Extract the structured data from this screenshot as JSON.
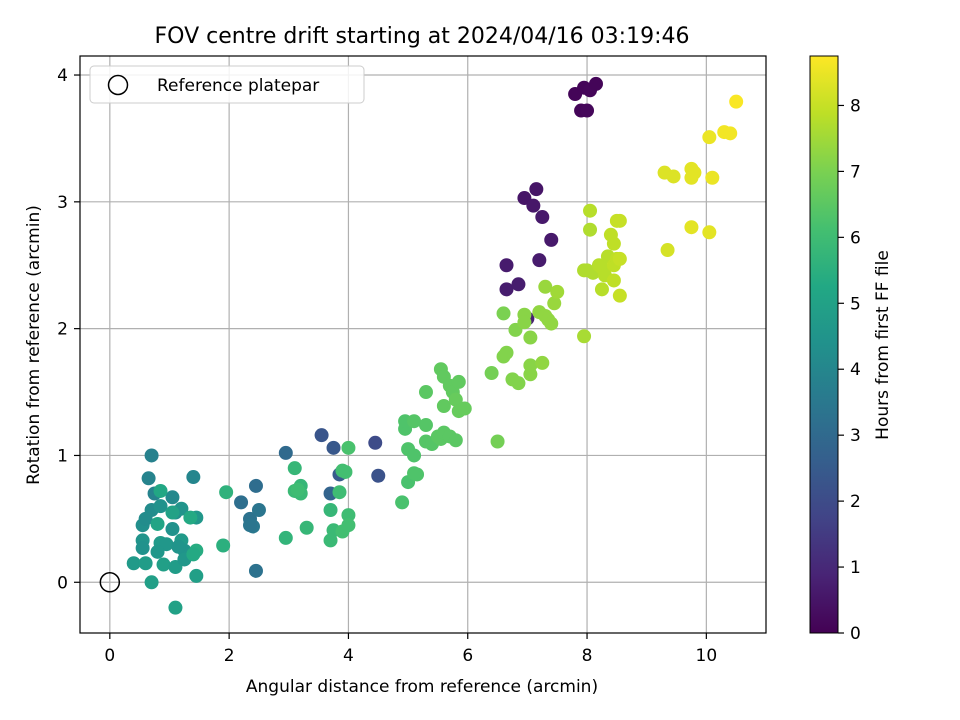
{
  "chart_data": {
    "type": "scatter",
    "title": "FOV centre drift starting at 2024/04/16 03:19:46",
    "xlabel": "Angular distance from reference (arcmin)",
    "ylabel": "Rotation from reference (arcmin)",
    "xlim": [
      -0.5,
      11.0
    ],
    "ylim": [
      -0.4,
      4.15
    ],
    "xticks": [
      0,
      2,
      4,
      6,
      8,
      10
    ],
    "yticks": [
      0,
      1,
      2,
      3,
      4
    ],
    "grid": true,
    "legend": {
      "placement": "top-left",
      "entries": [
        "Reference platepar"
      ]
    },
    "reference_point": {
      "x": 0,
      "y": 0,
      "label": "Reference platepar"
    },
    "colorbar": {
      "label": "Hours from first FF file",
      "range": [
        0,
        8.75
      ],
      "ticks": [
        0,
        1,
        2,
        3,
        4,
        5,
        6,
        7,
        8
      ],
      "colormap": "viridis"
    },
    "points": [
      [
        7.8,
        3.85,
        0.1
      ],
      [
        7.9,
        3.72,
        0.1
      ],
      [
        8.0,
        3.72,
        0.15
      ],
      [
        7.95,
        3.9,
        0.1
      ],
      [
        8.05,
        3.88,
        0.12
      ],
      [
        8.15,
        3.93,
        0.1
      ],
      [
        6.95,
        3.03,
        0.5
      ],
      [
        7.15,
        3.1,
        0.5
      ],
      [
        7.1,
        2.97,
        0.55
      ],
      [
        7.25,
        2.88,
        0.6
      ],
      [
        7.4,
        2.7,
        0.6
      ],
      [
        7.2,
        2.54,
        0.65
      ],
      [
        6.65,
        2.5,
        0.65
      ],
      [
        6.65,
        2.31,
        0.7
      ],
      [
        6.85,
        2.35,
        0.7
      ],
      [
        7.0,
        2.08,
        0.8
      ],
      [
        4.45,
        1.1,
        2.0
      ],
      [
        3.55,
        1.16,
        2.3
      ],
      [
        3.75,
        1.06,
        2.4
      ],
      [
        4.5,
        0.84,
        2.2
      ],
      [
        3.85,
        0.85,
        2.5
      ],
      [
        3.7,
        0.7,
        2.8
      ],
      [
        2.95,
        1.02,
        3.0
      ],
      [
        2.45,
        0.76,
        3.1
      ],
      [
        2.2,
        0.63,
        3.2
      ],
      [
        2.35,
        0.5,
        3.3
      ],
      [
        2.5,
        0.57,
        3.4
      ],
      [
        2.45,
        0.09,
        3.3
      ],
      [
        2.4,
        0.44,
        3.5
      ],
      [
        2.35,
        0.45,
        3.4
      ],
      [
        0.7,
        1.0,
        3.8
      ],
      [
        0.65,
        0.82,
        3.9
      ],
      [
        1.4,
        0.83,
        4.0
      ],
      [
        0.75,
        0.7,
        3.9
      ],
      [
        1.05,
        0.67,
        4.1
      ],
      [
        0.7,
        0.57,
        4.2
      ],
      [
        0.55,
        0.45,
        4.3
      ],
      [
        0.6,
        0.5,
        4.2
      ],
      [
        0.85,
        0.6,
        4.4
      ],
      [
        1.1,
        0.55,
        4.3
      ],
      [
        1.2,
        0.58,
        4.5
      ],
      [
        1.45,
        0.51,
        4.6
      ],
      [
        1.05,
        0.42,
        4.4
      ],
      [
        0.55,
        0.33,
        4.5
      ],
      [
        0.55,
        0.27,
        4.4
      ],
      [
        0.85,
        0.31,
        4.7
      ],
      [
        0.95,
        0.3,
        4.6
      ],
      [
        1.2,
        0.33,
        4.7
      ],
      [
        1.25,
        0.25,
        4.5
      ],
      [
        1.15,
        0.28,
        4.5
      ],
      [
        0.8,
        0.24,
        4.6
      ],
      [
        0.4,
        0.15,
        4.7
      ],
      [
        0.6,
        0.15,
        4.8
      ],
      [
        0.9,
        0.14,
        4.9
      ],
      [
        1.1,
        0.12,
        4.8
      ],
      [
        1.25,
        0.18,
        4.6
      ],
      [
        1.45,
        0.05,
        4.9
      ],
      [
        0.7,
        0.0,
        4.9
      ],
      [
        1.1,
        -0.2,
        5.0
      ],
      [
        0.85,
        0.72,
        5.2
      ],
      [
        0.8,
        0.46,
        5.1
      ],
      [
        1.35,
        0.51,
        5.3
      ],
      [
        1.45,
        0.25,
        5.4
      ],
      [
        1.4,
        0.22,
        5.3
      ],
      [
        1.05,
        0.55,
        5.0
      ],
      [
        1.95,
        0.71,
        5.6
      ],
      [
        1.9,
        0.29,
        5.5
      ],
      [
        2.95,
        0.35,
        5.7
      ],
      [
        3.1,
        0.9,
        5.8
      ],
      [
        3.1,
        0.72,
        5.9
      ],
      [
        3.2,
        0.76,
        5.8
      ],
      [
        3.2,
        0.7,
        5.9
      ],
      [
        3.3,
        0.43,
        5.8
      ],
      [
        3.15,
        0.73,
        6.0
      ],
      [
        3.7,
        0.57,
        5.8
      ],
      [
        3.7,
        0.33,
        5.9
      ],
      [
        3.75,
        0.41,
        5.9
      ],
      [
        3.85,
        0.71,
        6.0
      ],
      [
        3.9,
        0.88,
        6.1
      ],
      [
        3.95,
        0.87,
        6.1
      ],
      [
        4.0,
        1.06,
        6.2
      ],
      [
        4.0,
        0.53,
        6.0
      ],
      [
        3.9,
        0.4,
        6.1
      ],
      [
        4.0,
        0.45,
        6.1
      ],
      [
        4.9,
        0.63,
        6.2
      ],
      [
        5.0,
        0.79,
        6.2
      ],
      [
        5.0,
        1.05,
        6.3
      ],
      [
        5.1,
        1.0,
        6.3
      ],
      [
        5.15,
        0.85,
        6.3
      ],
      [
        5.1,
        0.86,
        6.3
      ],
      [
        4.95,
        1.21,
        6.3
      ],
      [
        4.95,
        1.27,
        6.3
      ],
      [
        5.1,
        1.27,
        6.4
      ],
      [
        5.3,
        1.24,
        6.4
      ],
      [
        5.3,
        1.11,
        6.4
      ],
      [
        5.4,
        1.09,
        6.4
      ],
      [
        5.5,
        1.15,
        6.5
      ],
      [
        5.55,
        1.13,
        6.5
      ],
      [
        5.6,
        1.18,
        6.5
      ],
      [
        5.7,
        1.15,
        6.5
      ],
      [
        5.8,
        1.12,
        6.5
      ],
      [
        5.3,
        1.5,
        6.5
      ],
      [
        5.55,
        1.68,
        6.6
      ],
      [
        5.6,
        1.62,
        6.6
      ],
      [
        5.7,
        1.55,
        6.6
      ],
      [
        5.75,
        1.5,
        6.6
      ],
      [
        5.85,
        1.58,
        6.6
      ],
      [
        5.6,
        1.39,
        6.6
      ],
      [
        5.8,
        1.44,
        6.7
      ],
      [
        5.85,
        1.35,
        6.7
      ],
      [
        5.95,
        1.37,
        6.7
      ],
      [
        6.4,
        1.65,
        6.9
      ],
      [
        6.5,
        1.11,
        6.9
      ],
      [
        6.6,
        2.12,
        7.0
      ],
      [
        6.6,
        1.78,
        7.1
      ],
      [
        6.65,
        1.81,
        7.1
      ],
      [
        6.75,
        1.6,
        7.1
      ],
      [
        6.85,
        1.57,
        7.1
      ],
      [
        6.8,
        1.99,
        7.1
      ],
      [
        6.95,
        2.11,
        7.2
      ],
      [
        6.95,
        2.05,
        7.2
      ],
      [
        7.05,
        1.93,
        7.2
      ],
      [
        7.05,
        1.71,
        7.2
      ],
      [
        7.05,
        1.64,
        7.2
      ],
      [
        7.2,
        2.13,
        7.3
      ],
      [
        7.3,
        2.1,
        7.3
      ],
      [
        7.25,
        1.73,
        7.3
      ],
      [
        7.35,
        2.07,
        7.3
      ],
      [
        7.4,
        2.04,
        7.3
      ],
      [
        7.45,
        2.2,
        7.4
      ],
      [
        7.3,
        2.33,
        7.4
      ],
      [
        7.5,
        2.29,
        7.5
      ],
      [
        7.95,
        1.94,
        7.6
      ],
      [
        7.95,
        2.46,
        7.7
      ],
      [
        8.0,
        2.46,
        7.7
      ],
      [
        8.05,
        2.78,
        7.7
      ],
      [
        8.05,
        2.93,
        7.8
      ],
      [
        8.1,
        2.44,
        7.7
      ],
      [
        8.2,
        2.5,
        7.8
      ],
      [
        8.25,
        2.48,
        7.8
      ],
      [
        8.3,
        2.42,
        7.8
      ],
      [
        8.35,
        2.57,
        7.8
      ],
      [
        8.25,
        2.31,
        7.8
      ],
      [
        8.4,
        2.74,
        7.9
      ],
      [
        8.45,
        2.67,
        7.9
      ],
      [
        8.45,
        2.5,
        7.9
      ],
      [
        8.5,
        2.55,
        7.9
      ],
      [
        8.45,
        2.38,
        7.9
      ],
      [
        8.55,
        2.26,
        8.0
      ],
      [
        8.5,
        2.85,
        8.0
      ],
      [
        8.55,
        2.85,
        8.0
      ],
      [
        8.55,
        2.55,
        8.0
      ],
      [
        9.3,
        3.23,
        8.3
      ],
      [
        9.45,
        3.2,
        8.3
      ],
      [
        9.35,
        2.62,
        8.2
      ],
      [
        9.75,
        3.26,
        8.4
      ],
      [
        9.8,
        3.23,
        8.4
      ],
      [
        9.75,
        3.19,
        8.4
      ],
      [
        9.75,
        2.8,
        8.4
      ],
      [
        10.05,
        2.76,
        8.4
      ],
      [
        10.1,
        3.19,
        8.5
      ],
      [
        10.05,
        3.51,
        8.5
      ],
      [
        10.3,
        3.55,
        8.6
      ],
      [
        10.4,
        3.54,
        8.6
      ],
      [
        10.5,
        3.79,
        8.7
      ]
    ]
  }
}
